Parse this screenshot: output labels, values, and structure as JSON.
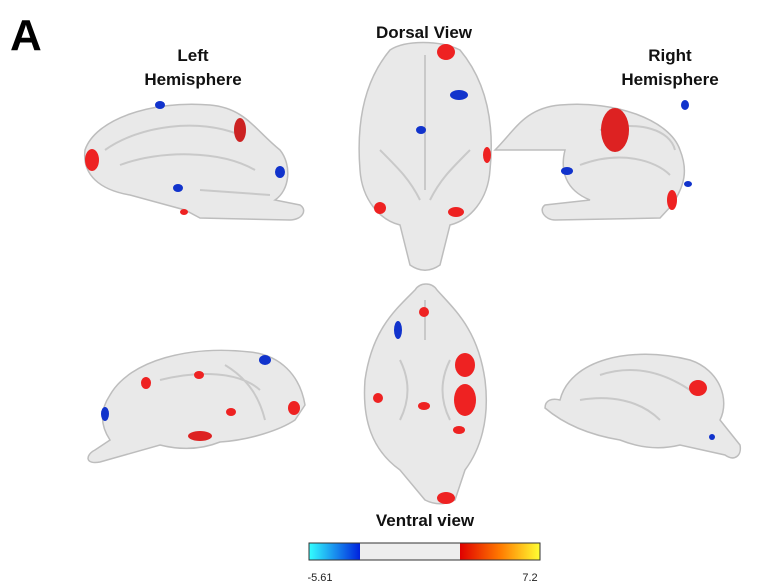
{
  "panel_label": "A",
  "views": {
    "dorsal": "Dorsal View",
    "ventral": "Ventral view",
    "left": {
      "lines": [
        "Left",
        "Hemisphere"
      ]
    },
    "right": {
      "lines": [
        "Right",
        "Hemisphere"
      ]
    }
  },
  "colorbar": {
    "min": "-5.61",
    "max": "7.2"
  }
}
